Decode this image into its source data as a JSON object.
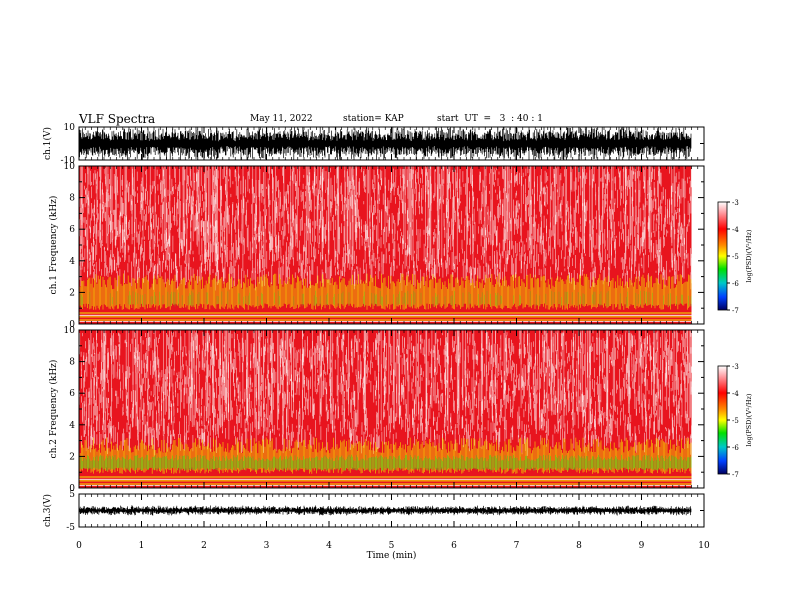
{
  "header": {
    "title": "VLF Spectra",
    "date": "May 11, 2022",
    "station": "station= KAP",
    "start": "start  UT  =   3  : 40 : 1"
  },
  "colors": {
    "spectrogram_bg": "#e8141e",
    "band_yellow": "#f5e600",
    "band_green": "#5ad41a",
    "speckle_white": "#ffffff"
  },
  "chart_data": [
    {
      "type": "line",
      "panel": "ch1-waveform",
      "ylabel": "ch.1(V)",
      "ylim": [
        -10,
        10
      ],
      "yticks": [
        "10",
        "-10"
      ],
      "xlim": [
        0,
        10
      ]
    },
    {
      "type": "heatmap",
      "panel": "ch1-spectrogram",
      "ylabel": "ch.1  Frequency  (kHz)",
      "ylim": [
        0,
        10
      ],
      "xlim": [
        0,
        10
      ],
      "yticks": [
        "0",
        "2",
        "4",
        "6",
        "8",
        "10"
      ],
      "colorbar": {
        "label": "log(PSD)(V²/Hz)",
        "range": [
          -7,
          -3
        ],
        "ticks": [
          "-3",
          "-4",
          "-5",
          "-6",
          "-7"
        ]
      }
    },
    {
      "type": "heatmap",
      "panel": "ch2-spectrogram",
      "ylabel": "ch.2  Frequency  (kHz)",
      "ylim": [
        0,
        10
      ],
      "xlim": [
        0,
        10
      ],
      "yticks": [
        "0",
        "2",
        "4",
        "6",
        "8",
        "10"
      ],
      "colorbar": {
        "label": "log(PSD)(V²/Hz)",
        "range": [
          -7,
          -3
        ],
        "ticks": [
          "-3",
          "-4",
          "-5",
          "-6",
          "-7"
        ]
      }
    },
    {
      "type": "line",
      "panel": "ch3-waveform",
      "ylabel": "ch.3(V)",
      "ylim": [
        -5,
        5
      ],
      "yticks": [
        "5",
        "-5"
      ],
      "xlim": [
        0,
        10
      ],
      "xlabel": "Time  (min)",
      "xticks": [
        "0",
        "1",
        "2",
        "3",
        "4",
        "5",
        "6",
        "7",
        "8",
        "9",
        "10"
      ],
      "data_end_min": 9.8
    }
  ]
}
